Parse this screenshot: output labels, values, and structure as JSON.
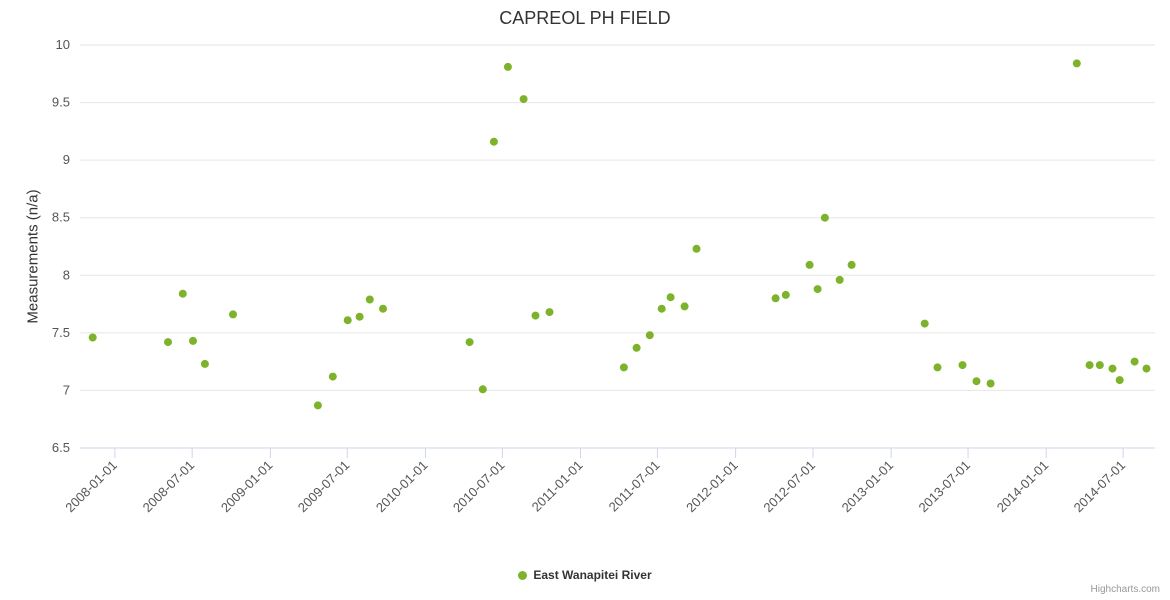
{
  "chart": {
    "title": "CAPREOL PH FIELD",
    "credits": "Highcharts.com",
    "colors": {
      "point": "#7db32a",
      "grid": "#e6e6e6",
      "axis_line": "#ccd6eb",
      "tick": "#ccd6eb",
      "label": "#555555",
      "title_text": "#333333"
    }
  },
  "chart_data": {
    "type": "scatter",
    "title": "CAPREOL PH FIELD",
    "xlabel": "",
    "ylabel": "Measurements (n/a)",
    "ylim": [
      6.5,
      10
    ],
    "y_ticks": [
      6.5,
      7,
      7.5,
      8,
      8.5,
      9,
      9.5,
      10
    ],
    "x_ticks": [
      "2008-01-01",
      "2008-07-01",
      "2009-01-01",
      "2009-07-01",
      "2010-01-01",
      "2010-07-01",
      "2011-01-01",
      "2011-07-01",
      "2012-01-01",
      "2012-07-01",
      "2013-01-01",
      "2013-07-01",
      "2014-01-01",
      "2014-07-01"
    ],
    "x_range": [
      "2007-10-11",
      "2014-09-14"
    ],
    "grid": true,
    "legend_position": "bottom",
    "series": [
      {
        "name": "East Wanapitei River",
        "color": "#7db32a",
        "points": [
          {
            "x": "2007-11-10",
            "y": 7.46
          },
          {
            "x": "2008-05-05",
            "y": 7.42
          },
          {
            "x": "2008-06-09",
            "y": 7.84
          },
          {
            "x": "2008-07-03",
            "y": 7.43
          },
          {
            "x": "2008-07-31",
            "y": 7.23
          },
          {
            "x": "2008-10-05",
            "y": 7.66
          },
          {
            "x": "2009-04-23",
            "y": 6.87
          },
          {
            "x": "2009-05-28",
            "y": 7.12
          },
          {
            "x": "2009-07-02",
            "y": 7.61
          },
          {
            "x": "2009-07-30",
            "y": 7.64
          },
          {
            "x": "2009-08-23",
            "y": 7.79
          },
          {
            "x": "2009-09-23",
            "y": 7.71
          },
          {
            "x": "2010-04-15",
            "y": 7.42
          },
          {
            "x": "2010-05-16",
            "y": 7.01
          },
          {
            "x": "2010-06-11",
            "y": 9.16
          },
          {
            "x": "2010-07-14",
            "y": 9.81
          },
          {
            "x": "2010-08-20",
            "y": 9.53
          },
          {
            "x": "2010-09-17",
            "y": 7.65
          },
          {
            "x": "2010-10-20",
            "y": 7.68
          },
          {
            "x": "2011-04-13",
            "y": 7.2
          },
          {
            "x": "2011-05-13",
            "y": 7.37
          },
          {
            "x": "2011-06-13",
            "y": 7.48
          },
          {
            "x": "2011-07-11",
            "y": 7.71
          },
          {
            "x": "2011-08-01",
            "y": 7.81
          },
          {
            "x": "2011-09-03",
            "y": 7.73
          },
          {
            "x": "2011-10-01",
            "y": 8.23
          },
          {
            "x": "2012-04-04",
            "y": 7.8
          },
          {
            "x": "2012-04-28",
            "y": 7.83
          },
          {
            "x": "2012-06-23",
            "y": 8.09
          },
          {
            "x": "2012-07-12",
            "y": 7.88
          },
          {
            "x": "2012-07-29",
            "y": 8.5
          },
          {
            "x": "2012-09-02",
            "y": 7.96
          },
          {
            "x": "2012-09-30",
            "y": 8.09
          },
          {
            "x": "2013-03-21",
            "y": 7.58
          },
          {
            "x": "2013-04-20",
            "y": 7.2
          },
          {
            "x": "2013-06-18",
            "y": 7.22
          },
          {
            "x": "2013-07-21",
            "y": 7.08
          },
          {
            "x": "2013-08-23",
            "y": 7.06
          },
          {
            "x": "2014-03-14",
            "y": 9.84
          },
          {
            "x": "2014-04-13",
            "y": 7.22
          },
          {
            "x": "2014-05-07",
            "y": 7.22
          },
          {
            "x": "2014-06-06",
            "y": 7.19
          },
          {
            "x": "2014-06-23",
            "y": 7.09
          },
          {
            "x": "2014-07-28",
            "y": 7.25
          },
          {
            "x": "2014-08-25",
            "y": 7.19
          }
        ]
      }
    ]
  }
}
